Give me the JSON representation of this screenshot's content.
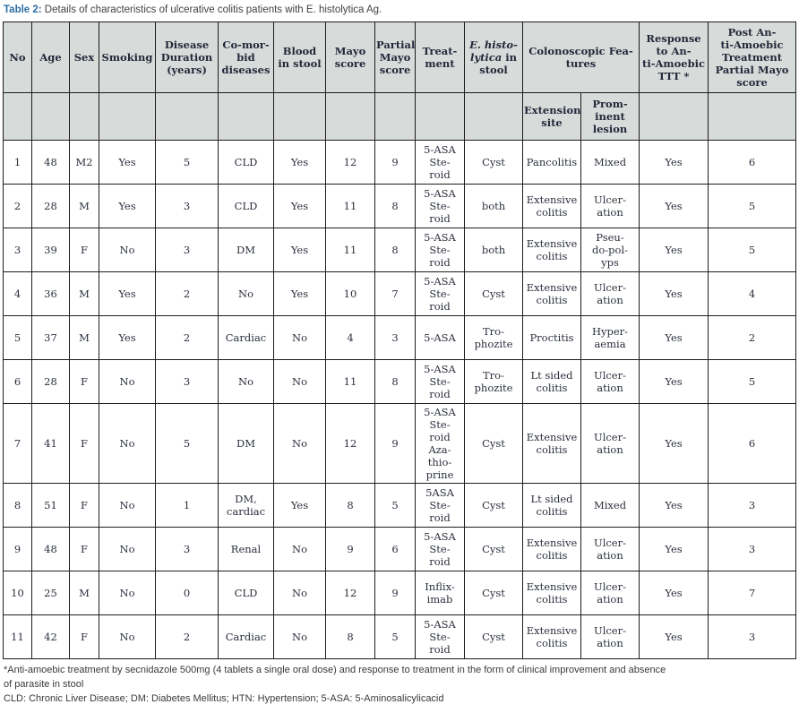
{
  "title": {
    "label": "Table 2:",
    "text": " Details of characteristics of ulcerative colitis patients with E. histolytica Ag."
  },
  "table": {
    "headers": {
      "no": "No",
      "age": "Age",
      "sex": "Sex",
      "smoking": "Smoking",
      "duration": "Disease\nDuration\n(years)",
      "comorbid": "Co-mor-\nbid\ndiseases",
      "blood": "Blood\nin stool",
      "mayo": "Mayo\nscore",
      "partial_mayo": "Partial\nMayo\nscore",
      "treatment": "Treat-\nment",
      "e_histolytica": {
        "italic": "E. histo-\nlytica",
        "rest": " in\nstool"
      },
      "colonoscopic": "Colonoscopic Fea-\ntures",
      "response": "Response\nto An-\nti-Amoebic\nTTT *",
      "post": "Post An-\nti-Amoebic\nTreatment\nPartial Mayo\nscore"
    },
    "subheaders": {
      "extension": "Extension\nsite",
      "prominent": "Prom-\ninent\nlesion"
    },
    "rows": [
      {
        "no": "1",
        "age": "48",
        "sex": "M2",
        "smoking": "Yes",
        "duration": "5",
        "comorbid": "CLD",
        "blood": "Yes",
        "mayo": "12",
        "partial_mayo": "9",
        "treatment": "5-ASA\nSte-\nroid",
        "e_histolytica": "Cyst",
        "extension": "Pancolitis",
        "prominent": "Mixed",
        "response": "Yes",
        "post": "6"
      },
      {
        "no": "2",
        "age": "28",
        "sex": "M",
        "smoking": "Yes",
        "duration": "3",
        "comorbid": "CLD",
        "blood": "Yes",
        "mayo": "11",
        "partial_mayo": "8",
        "treatment": "5-ASA\nSte-\nroid",
        "e_histolytica": "both",
        "extension": "Extensive\ncolitis",
        "prominent": "Ulcer-\nation",
        "response": "Yes",
        "post": "5"
      },
      {
        "no": "3",
        "age": "39",
        "sex": "F",
        "smoking": "No",
        "duration": "3",
        "comorbid": "DM",
        "blood": "Yes",
        "mayo": "11",
        "partial_mayo": "8",
        "treatment": "5-ASA\nSte-\nroid",
        "e_histolytica": "both",
        "extension": "Extensive\ncolitis",
        "prominent": "Pseu-\ndo-pol-\nyps",
        "response": "Yes",
        "post": "5"
      },
      {
        "no": "4",
        "age": "36",
        "sex": "M",
        "smoking": "Yes",
        "duration": "2",
        "comorbid": "No",
        "blood": "Yes",
        "mayo": "10",
        "partial_mayo": "7",
        "treatment": "5-ASA\nSte-\nroid",
        "e_histolytica": "Cyst",
        "extension": "Extensive\ncolitis",
        "prominent": "Ulcer-\nation",
        "response": "Yes",
        "post": "4"
      },
      {
        "no": "5",
        "age": "37",
        "sex": "M",
        "smoking": "Yes",
        "duration": "2",
        "comorbid": "Cardiac",
        "blood": "No",
        "mayo": "4",
        "partial_mayo": "3",
        "treatment": "5-ASA",
        "e_histolytica": "Tro-\nphozite",
        "extension": "Proctitis",
        "prominent": "Hyper-\naemia",
        "response": "Yes",
        "post": "2"
      },
      {
        "no": "6",
        "age": "28",
        "sex": "F",
        "smoking": "No",
        "duration": "3",
        "comorbid": "No",
        "blood": "No",
        "mayo": "11",
        "partial_mayo": "8",
        "treatment": "5-ASA\nSte-\nroid",
        "e_histolytica": "Tro-\nphozite",
        "extension": "Lt sided\ncolitis",
        "prominent": "Ulcer-\nation",
        "response": "Yes",
        "post": "5"
      },
      {
        "no": "7",
        "age": "41",
        "sex": "F",
        "smoking": "No",
        "duration": "5",
        "comorbid": "DM",
        "blood": "No",
        "mayo": "12",
        "partial_mayo": "9",
        "treatment": "5-ASA\nSte-\nroid\nAza-\nthio-\nprine",
        "e_histolytica": "Cyst",
        "extension": "Extensive\ncolitis",
        "prominent": "Ulcer-\nation",
        "response": "Yes",
        "post": "6"
      },
      {
        "no": "8",
        "age": "51",
        "sex": "F",
        "smoking": "No",
        "duration": "1",
        "comorbid": "DM,\ncardiac",
        "blood": "Yes",
        "mayo": "8",
        "partial_mayo": "5",
        "treatment": "5ASA\nSte-\nroid",
        "e_histolytica": "Cyst",
        "extension": "Lt sided\ncolitis",
        "prominent": "Mixed",
        "response": "Yes",
        "post": "3"
      },
      {
        "no": "9",
        "age": "48",
        "sex": "F",
        "smoking": "No",
        "duration": "3",
        "comorbid": "Renal",
        "blood": "No",
        "mayo": "9",
        "partial_mayo": "6",
        "treatment": "5-ASA\nSte-\nroid",
        "e_histolytica": "Cyst",
        "extension": "Extensive\ncolitis",
        "prominent": "Ulcer-\nation",
        "response": "Yes",
        "post": "3"
      },
      {
        "no": "10",
        "age": "25",
        "sex": "M",
        "smoking": "No",
        "duration": "0",
        "comorbid": "CLD",
        "blood": "No",
        "mayo": "12",
        "partial_mayo": "9",
        "treatment": "Inflix-\nimab",
        "e_histolytica": "Cyst",
        "extension": "Extensive\ncolitis",
        "prominent": "Ulcer-\nation",
        "response": "Yes",
        "post": "7"
      },
      {
        "no": "11",
        "age": "42",
        "sex": "F",
        "smoking": "No",
        "duration": "2",
        "comorbid": "Cardiac",
        "blood": "No",
        "mayo": "8",
        "partial_mayo": "5",
        "treatment": "5-ASA\nSte-\nroid",
        "e_histolytica": "Cyst",
        "extension": "Extensive\ncolitis",
        "prominent": "Ulcer-\nation",
        "response": "Yes",
        "post": "3"
      }
    ]
  },
  "footnotes": {
    "line1": "*Anti-amoebic treatment by secnidazole 500mg (4 tablets a single oral dose) and response to treatment in the form of clinical improvement and absence\nof parasite in stool",
    "line2": "CLD: Chronic Liver Disease; DM: Diabetes Mellitus; HTN: Hypertension; 5-ASA: 5-Aminosalicylicacid"
  },
  "colors": {
    "title_accent": "#2e6da4",
    "header_bg": "#d7dbd9",
    "border": "#1c1c1c",
    "body_text": "#2b303c"
  }
}
